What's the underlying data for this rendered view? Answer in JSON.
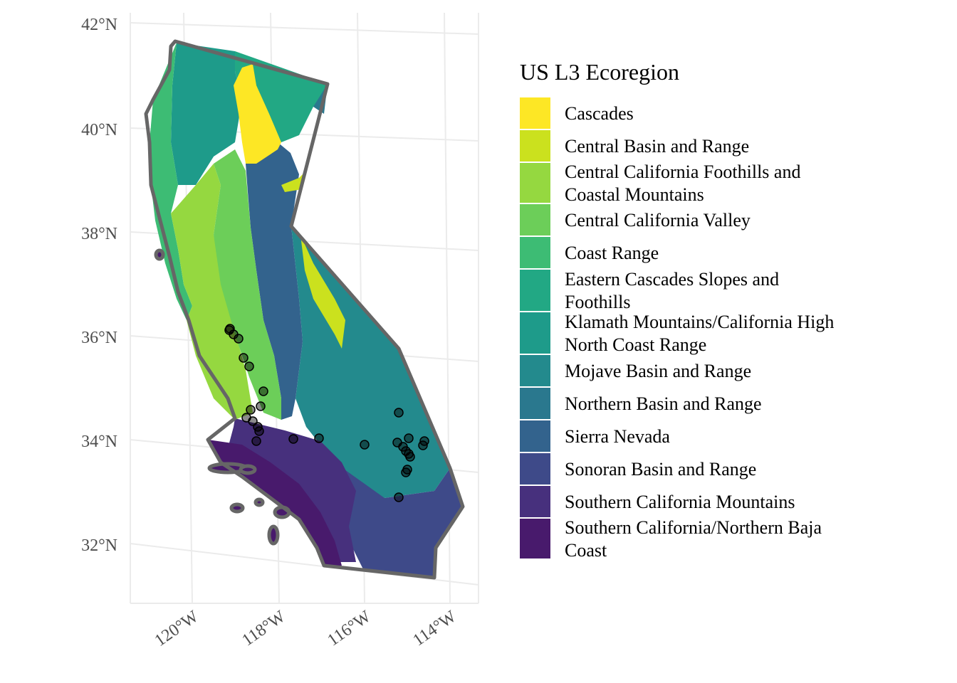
{
  "map": {
    "axes": {
      "lat_ticks": [
        "42°N",
        "40°N",
        "38°N",
        "36°N",
        "34°N",
        "32°N"
      ],
      "lon_ticks": [
        "120°W",
        "118°W",
        "116°W",
        "114°W"
      ]
    },
    "state_outline_color": "#666666",
    "point_color": "#000000",
    "point_opacity": 0.45
  },
  "legend": {
    "title": "US L3 Ecoregion",
    "items": [
      {
        "lines": [
          "Cascades"
        ],
        "color": "#FDE725"
      },
      {
        "lines": [
          "Central Basin and Range"
        ],
        "color": "#CBE11E"
      },
      {
        "lines": [
          "Central California Foothills and",
          "Coastal Mountains"
        ],
        "color": "#95D840"
      },
      {
        "lines": [
          "Central California Valley"
        ],
        "color": "#6CCE59"
      },
      {
        "lines": [
          "Coast Range"
        ],
        "color": "#3DBC74"
      },
      {
        "lines": [
          "Eastern Cascades Slopes and",
          "Foothills"
        ],
        "color": "#22A884"
      },
      {
        "lines": [
          "Klamath Mountains/California High",
          "North Coast Range"
        ],
        "color": "#1E9B8A"
      },
      {
        "lines": [
          "Mojave Basin and Range"
        ],
        "color": "#238A8D"
      },
      {
        "lines": [
          "Northern Basin and Range"
        ],
        "color": "#2A788E"
      },
      {
        "lines": [
          "Sierra Nevada"
        ],
        "color": "#33638D"
      },
      {
        "lines": [
          "Sonoran Basin and Range"
        ],
        "color": "#3E4A89"
      },
      {
        "lines": [
          "Southern California Mountains"
        ],
        "color": "#47307D"
      },
      {
        "lines": [
          "Southern California/Northern Baja",
          "Coast"
        ],
        "color": "#481A6C"
      }
    ]
  }
}
